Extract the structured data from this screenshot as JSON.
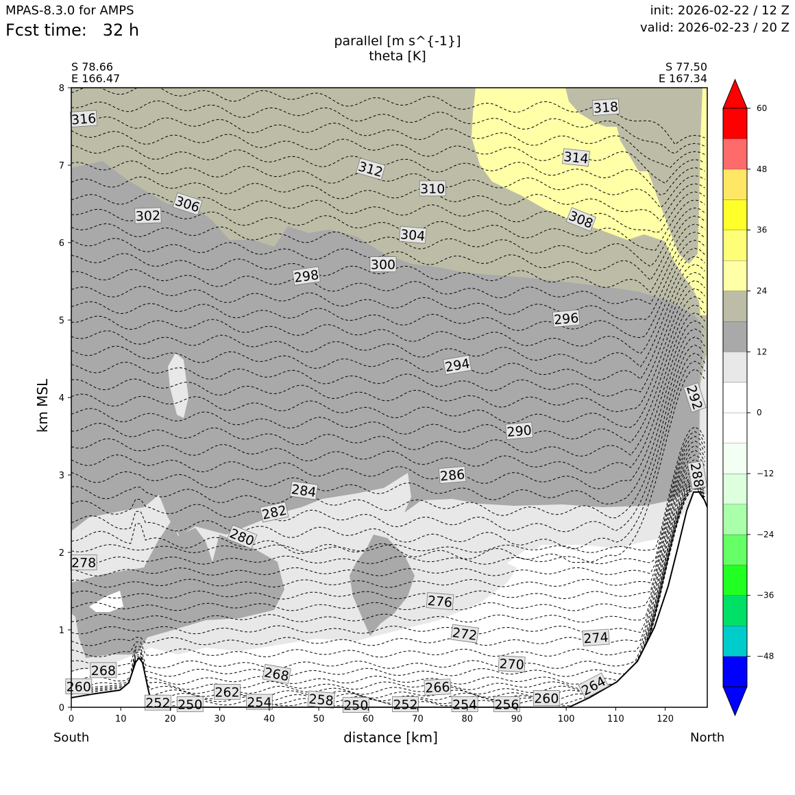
{
  "header": {
    "model": "MPAS-8.3.0 for AMPS",
    "fcst_label": "Fcst time:",
    "fcst_value": "32 h",
    "init": "init: 2026-02-22 / 12 Z",
    "valid": "valid: 2026-02-23 / 20 Z",
    "title_line1": "parallel [m s^{-1}]",
    "title_line2": "theta [K]"
  },
  "endpoints": {
    "left_lat": "S 78.66",
    "left_lon": "E 166.47",
    "right_lat": "S 77.50",
    "right_lon": "E 167.34",
    "left_label": "South",
    "right_label": "North"
  },
  "chart_data": {
    "type": "cross-section",
    "xlabel": "distance [km]",
    "ylabel": "km MSL",
    "xlim": [
      0,
      128.5
    ],
    "ylim": [
      0,
      8
    ],
    "x_ticks": [
      0,
      10,
      20,
      30,
      40,
      50,
      60,
      70,
      80,
      90,
      100,
      110,
      120
    ],
    "y_ticks": [
      0,
      1,
      2,
      3,
      4,
      5,
      6,
      7,
      8
    ],
    "filled_variable": "parallel [m s^{-1}]",
    "contour_variable": "theta [K]",
    "theta_labels": [
      {
        "value": "316",
        "x": 2.5,
        "y": 7.6,
        "rot": -4
      },
      {
        "value": "318",
        "x": 108,
        "y": 7.75,
        "rot": -4
      },
      {
        "value": "312",
        "x": 60.5,
        "y": 6.95,
        "rot": 16
      },
      {
        "value": "314",
        "x": 102,
        "y": 7.1,
        "rot": 6
      },
      {
        "value": "306",
        "x": 23.5,
        "y": 6.5,
        "rot": 18
      },
      {
        "value": "310",
        "x": 73,
        "y": 6.7,
        "rot": 0
      },
      {
        "value": "302",
        "x": 15.5,
        "y": 6.35,
        "rot": -2
      },
      {
        "value": "308",
        "x": 103,
        "y": 6.3,
        "rot": 22
      },
      {
        "value": "304",
        "x": 69,
        "y": 6.1,
        "rot": 5
      },
      {
        "value": "300",
        "x": 63,
        "y": 5.72,
        "rot": 0
      },
      {
        "value": "298",
        "x": 47.5,
        "y": 5.57,
        "rot": -8
      },
      {
        "value": "296",
        "x": 100,
        "y": 5.02,
        "rot": -5
      },
      {
        "value": "294",
        "x": 78,
        "y": 4.42,
        "rot": -10
      },
      {
        "value": "292",
        "x": 126,
        "y": 4.0,
        "rot": 72
      },
      {
        "value": "290",
        "x": 90.5,
        "y": 3.57,
        "rot": -5
      },
      {
        "value": "288",
        "x": 126.5,
        "y": 3.0,
        "rot": 80
      },
      {
        "value": "286",
        "x": 77,
        "y": 3.0,
        "rot": -5
      },
      {
        "value": "284",
        "x": 47,
        "y": 2.8,
        "rot": 8
      },
      {
        "value": "282",
        "x": 41,
        "y": 2.52,
        "rot": -12
      },
      {
        "value": "280",
        "x": 34.5,
        "y": 2.2,
        "rot": 22
      },
      {
        "value": "278",
        "x": 2.5,
        "y": 1.87,
        "rot": 0
      },
      {
        "value": "276",
        "x": 74.5,
        "y": 1.37,
        "rot": 5
      },
      {
        "value": "272",
        "x": 79.5,
        "y": 0.95,
        "rot": 8
      },
      {
        "value": "274",
        "x": 106,
        "y": 0.9,
        "rot": -4
      },
      {
        "value": "270",
        "x": 89,
        "y": 0.56,
        "rot": 3
      },
      {
        "value": "268",
        "x": 6.5,
        "y": 0.48,
        "rot": 0
      },
      {
        "value": "268",
        "x": 41.5,
        "y": 0.43,
        "rot": 10
      },
      {
        "value": "266",
        "x": 74,
        "y": 0.26,
        "rot": -3
      },
      {
        "value": "264",
        "x": 105.5,
        "y": 0.28,
        "rot": -28
      },
      {
        "value": "262",
        "x": 31.5,
        "y": 0.2,
        "rot": 0
      },
      {
        "value": "260",
        "x": 1.5,
        "y": 0.27,
        "rot": 0
      },
      {
        "value": "260",
        "x": 96,
        "y": 0.12,
        "rot": 0
      },
      {
        "value": "258",
        "x": 50.5,
        "y": 0.1,
        "rot": 5
      },
      {
        "value": "256",
        "x": 88,
        "y": 0.04,
        "rot": 0
      },
      {
        "value": "254",
        "x": 38,
        "y": 0.07,
        "rot": 0
      },
      {
        "value": "254",
        "x": 79.5,
        "y": 0.04,
        "rot": 0
      },
      {
        "value": "252",
        "x": 17.5,
        "y": 0.06,
        "rot": 0
      },
      {
        "value": "252",
        "x": 67.5,
        "y": 0.04,
        "rot": 0
      },
      {
        "value": "250",
        "x": 24,
        "y": 0.04,
        "rot": 0
      },
      {
        "value": "250",
        "x": 57.5,
        "y": 0.03,
        "rot": 0
      }
    ],
    "colorbar": {
      "ticks": [
        "60",
        "48",
        "36",
        "24",
        "12",
        "0",
        "−12",
        "−24",
        "−36",
        "−48"
      ],
      "tick_values": [
        60,
        48,
        36,
        24,
        12,
        0,
        -12,
        -24,
        -36,
        -48
      ],
      "levels": [
        -54,
        -48,
        -42,
        -36,
        -30,
        -24,
        -18,
        -12,
        -6,
        0,
        6,
        12,
        18,
        24,
        30,
        36,
        42,
        48,
        54,
        60
      ],
      "colors": [
        "#0000ff",
        "#00cccc",
        "#00e066",
        "#22ff22",
        "#66ff66",
        "#aaffaa",
        "#ddffdd",
        "#f4fff4",
        "#ffffff",
        "#ffffff",
        "#e8e8e8",
        "#a9a9a9",
        "#bdbda7",
        "#ffffa8",
        "#ffff77",
        "#ffff2a",
        "#ffe766",
        "#ff6b6b",
        "#ff0000"
      ],
      "under_color": "#0000ff",
      "over_color": "#ff0000"
    }
  }
}
